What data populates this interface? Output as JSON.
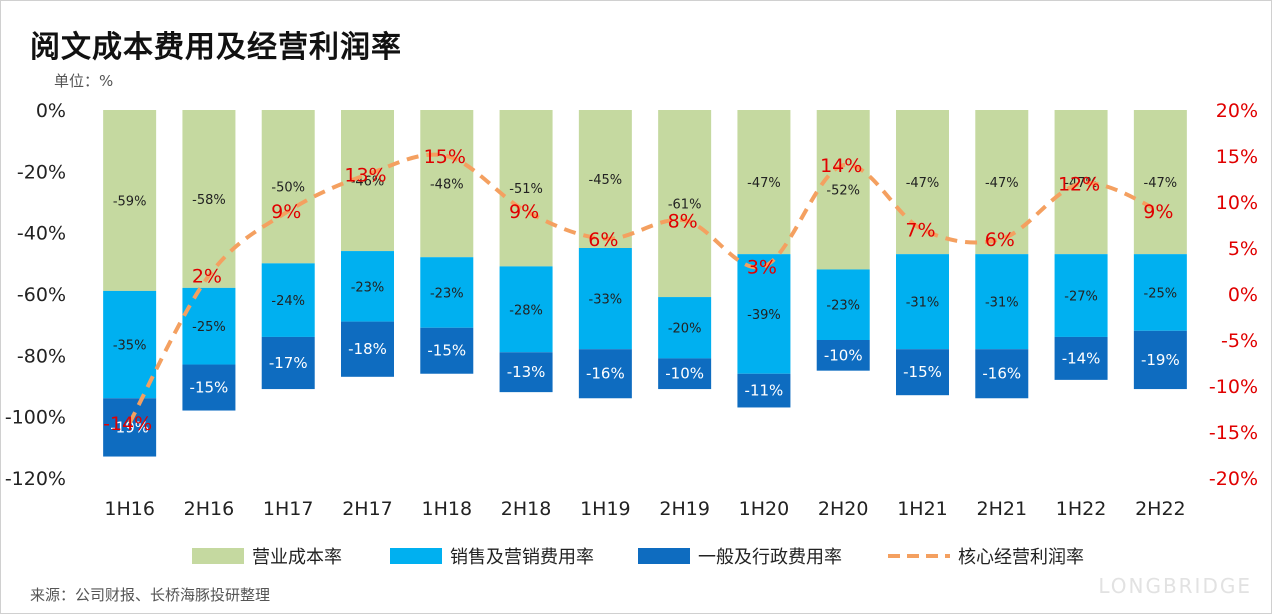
{
  "title": "阅文成本费用及经营利润率",
  "unit": "单位：%",
  "source": "来源：公司财报、长桥海豚投研整理",
  "watermark": "LONGBRIDGE",
  "colors": {
    "cost": "#C5D9A0",
    "selling": "#00B0F0",
    "admin": "#0E6CC0",
    "line": "#F4A060",
    "line_label": "#E00000",
    "axis_right": "#E00000"
  },
  "chart_data": {
    "type": "bar",
    "subtype": "stacked-bar-with-line",
    "categories": [
      "1H16",
      "2H16",
      "1H17",
      "2H17",
      "1H18",
      "2H18",
      "1H19",
      "2H19",
      "1H20",
      "2H20",
      "1H21",
      "2H21",
      "1H22",
      "2H22"
    ],
    "series": [
      {
        "name": "营业成本率",
        "values": [
          -59,
          -58,
          -50,
          -46,
          -48,
          -51,
          -45,
          -61,
          -47,
          -52,
          -47,
          -47,
          -47,
          -47
        ],
        "labels": [
          "-59%",
          "-58%",
          "-50%",
          "-46%",
          "-48%",
          "-51%",
          "-45%",
          "-61%",
          "-47%",
          "-52%",
          "-47%",
          "-47%",
          "-47%",
          "-47%"
        ]
      },
      {
        "name": "销售及营销费用率",
        "values": [
          -35,
          -25,
          -24,
          -23,
          -23,
          -28,
          -33,
          -20,
          -39,
          -23,
          -31,
          -31,
          -27,
          -25
        ],
        "labels": [
          "-35%",
          "-25%",
          "-24%",
          "-23%",
          "-23%",
          "-28%",
          "-33%",
          "-20%",
          "-39%",
          "-23%",
          "-31%",
          "-31%",
          "-27%",
          "-25%"
        ]
      },
      {
        "name": "一般及行政费用率",
        "values": [
          -19,
          -15,
          -17,
          -18,
          -15,
          -13,
          -16,
          -10,
          -11,
          -10,
          -15,
          -16,
          -14,
          -19
        ],
        "labels": [
          "-19%",
          "-15%",
          "-17%",
          "-18%",
          "-15%",
          "-13%",
          "-16%",
          "-10%",
          "-11%",
          "-10%",
          "-15%",
          "-16%",
          "-14%",
          "-19%"
        ]
      }
    ],
    "line": {
      "name": "核心经营利润率",
      "axis": "right",
      "values": [
        -14,
        2,
        9,
        13,
        15,
        9,
        6,
        8,
        3,
        14,
        7,
        6,
        12,
        9
      ],
      "labels": [
        "-14%",
        "2%",
        "9%",
        "13%",
        "15%",
        "9%",
        "6%",
        "8%",
        "3%",
        "14%",
        "7%",
        "6%",
        "12%",
        "9%"
      ]
    },
    "left_axis": {
      "ylim": [
        -120,
        0
      ],
      "ticks": [
        0,
        -20,
        -40,
        -60,
        -80,
        -100,
        -120
      ],
      "tick_labels": [
        "0%",
        "-20%",
        "-40%",
        "-60%",
        "-80%",
        "-100%",
        "-120%"
      ]
    },
    "right_axis": {
      "ylim": [
        -20,
        20
      ],
      "ticks": [
        20,
        15,
        10,
        5,
        0,
        -5,
        -10,
        -15,
        -20
      ],
      "tick_labels": [
        "20%",
        "15%",
        "10%",
        "5%",
        "0%",
        "-5%",
        "-10%",
        "-15%",
        "-20%"
      ]
    },
    "legend": [
      "营业成本率",
      "销售及营销费用率",
      "一般及行政费用率",
      "核心经营利润率"
    ],
    "legend_position": "bottom"
  }
}
